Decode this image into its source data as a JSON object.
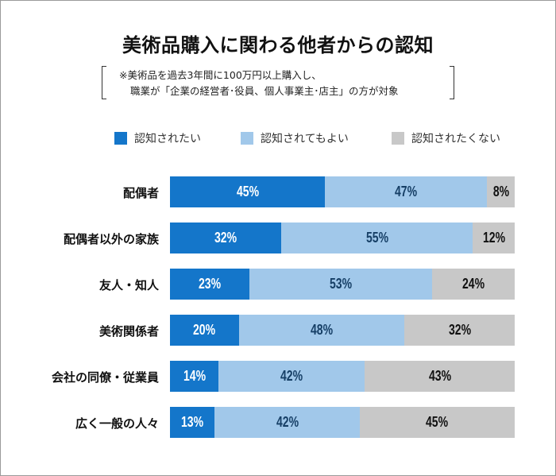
{
  "chart_data": {
    "type": "bar",
    "orientation": "horizontal",
    "stacked": true,
    "title": "美術品購入に関わる他者からの認知",
    "note_lines": [
      "※美術品を過去3年間に100万円以上購入し、",
      "職業が「企業の経営者･役員、個人事業主･店主」の方が対象"
    ],
    "categories": [
      "配偶者",
      "配偶者以外の家族",
      "友人・知人",
      "美術関係者",
      "会社の同僚・従業員",
      "広く一般の人々"
    ],
    "series": [
      {
        "name": "認知されたい",
        "color": "#1476ca",
        "label_color": "#ffffff",
        "values": [
          45,
          32,
          23,
          20,
          14,
          13
        ]
      },
      {
        "name": "認知されてもよい",
        "color": "#a1c8ea",
        "label_color": "#163f66",
        "values": [
          47,
          55,
          53,
          48,
          42,
          42
        ]
      },
      {
        "name": "認知されたくない",
        "color": "#c8c8c8",
        "label_color": "#111111",
        "values": [
          8,
          12,
          24,
          32,
          43,
          45
        ]
      }
    ],
    "unit": "%",
    "legend_position": "top",
    "grid": false
  }
}
